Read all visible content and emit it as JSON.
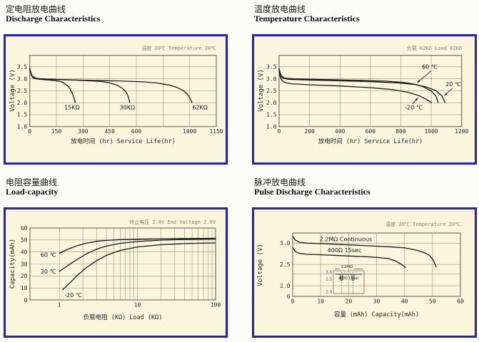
{
  "colors": {
    "panel_border": "#2323ad",
    "panel_bg": "#faf6dd",
    "grid": "#97907f",
    "plot_border": "#60594b",
    "curve": "#161616",
    "tick_text": "#262626",
    "label_text": "#111111",
    "annotation_text": "#8c7b60"
  },
  "chart_data": [
    {
      "type": "line",
      "title_cn": "定电阻放电曲线",
      "title_en": "Discharge Characteristics",
      "annotation": "温度 20℃  Temperature 20℃",
      "xlabel": "放电时间 (hr) Service Life(hr)",
      "ylabel": "Voltage (V)",
      "x_axis": {
        "type": "segmented",
        "gridvals": [
          0,
          150,
          300,
          450,
          600,
          800,
          1000,
          1150
        ],
        "labels": [
          "0",
          "150",
          "300",
          "450",
          "600",
          "",
          "1000",
          "1150"
        ]
      },
      "y_axis": {
        "min": 1.0,
        "max": 3.98,
        "grid": [
          1.5,
          2.0,
          2.5,
          3.0,
          3.5
        ],
        "ticks": [
          {
            "v": 3.5,
            "label": "3.5"
          },
          {
            "v": 3.0,
            "label": "3.0"
          },
          {
            "v": 2.5,
            "label": "2.5"
          },
          {
            "v": 2.0,
            "label": "2.0"
          },
          {
            "v": 1.5,
            "label": "1.5"
          },
          {
            "v": 1.0,
            "label": "1.0"
          }
        ]
      },
      "series": [
        {
          "name": "15KΩ",
          "points": [
            [
              0,
              3.44
            ],
            [
              4,
              3.3
            ],
            [
              9,
              3.15
            ],
            [
              18,
              3.04
            ],
            [
              35,
              3.0
            ],
            [
              70,
              2.97
            ],
            [
              110,
              2.95
            ],
            [
              150,
              2.92
            ],
            [
              175,
              2.88
            ],
            [
              195,
              2.81
            ],
            [
              213,
              2.71
            ],
            [
              228,
              2.57
            ],
            [
              240,
              2.38
            ],
            [
              250,
              2.17
            ],
            [
              256,
              2.0
            ]
          ]
        },
        {
          "name": "30KΩ",
          "points": [
            [
              0,
              3.44
            ],
            [
              5,
              3.28
            ],
            [
              12,
              3.1
            ],
            [
              28,
              3.02
            ],
            [
              70,
              2.99
            ],
            [
              150,
              2.97
            ],
            [
              250,
              2.95
            ],
            [
              340,
              2.92
            ],
            [
              410,
              2.88
            ],
            [
              455,
              2.82
            ],
            [
              492,
              2.73
            ],
            [
              522,
              2.6
            ],
            [
              544,
              2.42
            ],
            [
              557,
              2.2
            ],
            [
              563,
              2.0
            ]
          ]
        },
        {
          "name": "62KΩ",
          "points": [
            [
              0,
              3.44
            ],
            [
              6,
              3.26
            ],
            [
              15,
              3.1
            ],
            [
              40,
              3.01
            ],
            [
              120,
              2.98
            ],
            [
              300,
              2.94
            ],
            [
              500,
              2.91
            ],
            [
              650,
              2.87
            ],
            [
              760,
              2.82
            ],
            [
              845,
              2.74
            ],
            [
              905,
              2.64
            ],
            [
              952,
              2.51
            ],
            [
              987,
              2.33
            ],
            [
              1006,
              2.13
            ],
            [
              1013,
              2.0
            ]
          ]
        }
      ],
      "labels": [
        {
          "text": "15KΩ",
          "x": 238,
          "y": 1.8
        },
        {
          "text": "30KΩ",
          "x": 549,
          "y": 1.8
        },
        {
          "text": "62KΩ",
          "x": 1058,
          "y": 1.8
        }
      ],
      "arrows": []
    },
    {
      "type": "line",
      "title_cn": "温度放电曲线",
      "title_en": "Temperature Characteristics",
      "annotation": "负载 62KΩ Load 62KΩ",
      "xlabel": "放电时间 (hr) Service Life(hr)",
      "ylabel": "Voltage (V)",
      "x_axis": {
        "type": "linear",
        "min": 0,
        "max": 1200,
        "grid": [
          0,
          200,
          400,
          600,
          800,
          1000,
          1200
        ],
        "ticks": [
          {
            "v": 0,
            "label": "0"
          },
          {
            "v": 200,
            "label": "200"
          },
          {
            "v": 400,
            "label": "400"
          },
          {
            "v": 600,
            "label": "600"
          },
          {
            "v": 800,
            "label": "800"
          },
          {
            "v": 1000,
            "label": "1000"
          },
          {
            "v": 1200,
            "label": "1200"
          }
        ]
      },
      "y_axis": {
        "min": 1.0,
        "max": 3.98,
        "grid": [
          1.5,
          2.0,
          2.5,
          3.0,
          3.5
        ],
        "ticks": [
          {
            "v": 3.5,
            "label": "3.5"
          },
          {
            "v": 3.0,
            "label": "3.0"
          },
          {
            "v": 2.5,
            "label": "2.5"
          },
          {
            "v": 2.0,
            "label": "2.0"
          },
          {
            "v": 1.5,
            "label": "1.5"
          },
          {
            "v": 1.0,
            "label": "1.0"
          }
        ]
      },
      "series": [
        {
          "name": "60℃",
          "points": [
            [
              0,
              3.43
            ],
            [
              6,
              3.26
            ],
            [
              15,
              3.11
            ],
            [
              35,
              3.03
            ],
            [
              100,
              3.0
            ],
            [
              300,
              2.97
            ],
            [
              500,
              2.94
            ],
            [
              700,
              2.9
            ],
            [
              820,
              2.85
            ],
            [
              893,
              2.77
            ],
            [
              950,
              2.66
            ],
            [
              1000,
              2.49
            ],
            [
              1032,
              2.27
            ],
            [
              1046,
              2.0
            ]
          ]
        },
        {
          "name": "20℃",
          "points": [
            [
              0,
              3.41
            ],
            [
              8,
              3.19
            ],
            [
              20,
              3.04
            ],
            [
              60,
              2.98
            ],
            [
              200,
              2.95
            ],
            [
              400,
              2.92
            ],
            [
              600,
              2.88
            ],
            [
              780,
              2.83
            ],
            [
              893,
              2.76
            ],
            [
              972,
              2.65
            ],
            [
              1032,
              2.5
            ],
            [
              1070,
              2.29
            ],
            [
              1091,
              2.0
            ]
          ]
        },
        {
          "name": "-20℃",
          "points": [
            [
              0,
              3.37
            ],
            [
              6,
              3.12
            ],
            [
              16,
              2.95
            ],
            [
              38,
              2.84
            ],
            [
              85,
              2.79
            ],
            [
              200,
              2.75
            ],
            [
              400,
              2.7
            ],
            [
              600,
              2.63
            ],
            [
              740,
              2.55
            ],
            [
              845,
              2.44
            ],
            [
              918,
              2.3
            ],
            [
              968,
              2.14
            ],
            [
              1002,
              2.0
            ]
          ]
        }
      ],
      "labels": [
        {
          "text": "60 ℃",
          "x": 990,
          "y": 3.5
        },
        {
          "text": "20 ℃",
          "x": 1145,
          "y": 2.77
        },
        {
          "text": "-20 ℃",
          "x": 885,
          "y": 1.8
        }
      ],
      "arrows": [
        {
          "from": [
            1000,
            3.33
          ],
          "to": [
            908,
            2.84
          ]
        },
        {
          "from": [
            1138,
            2.6
          ],
          "to": [
            1088,
            2.3
          ]
        },
        {
          "from": [
            878,
            1.95
          ],
          "to": [
            912,
            2.2
          ]
        }
      ]
    },
    {
      "type": "line",
      "title_cn": "电阻容量曲线",
      "title_en": "Load-capacity",
      "annotation": "终止电压 2.0V End Voltage 2.0V",
      "xlabel": "负载电阻 (KΩ) Load (KΩ)",
      "ylabel": "Capacity(mAh)",
      "x_axis": {
        "type": "log",
        "min": 0.42,
        "max": 100,
        "grid": [
          1,
          2,
          3,
          4,
          5,
          6,
          7,
          8,
          9,
          10,
          20,
          30,
          40,
          50,
          60,
          70,
          80,
          90,
          100
        ],
        "ticks": [
          {
            "v": 1,
            "label": "1"
          },
          {
            "v": 10,
            "label": "10"
          },
          {
            "v": 100,
            "label": "100"
          }
        ]
      },
      "y_axis": {
        "min": 0,
        "max": 60,
        "grid": [
          10,
          20,
          30,
          40,
          50
        ],
        "ticks": [
          {
            "v": 60,
            "label": "60"
          },
          {
            "v": 50,
            "label": "50"
          },
          {
            "v": 40,
            "label": "40"
          },
          {
            "v": 30,
            "label": "30"
          },
          {
            "v": 20,
            "label": "20"
          },
          {
            "v": 10,
            "label": "10"
          },
          {
            "v": 0,
            "label": "0"
          }
        ]
      },
      "series": [
        {
          "name": "60℃",
          "points": [
            [
              1,
              39
            ],
            [
              1.3,
              42.5
            ],
            [
              1.7,
              45.3
            ],
            [
              2.2,
              47.3
            ],
            [
              3,
              48.9
            ],
            [
              4,
              49.7
            ],
            [
              6,
              50.3
            ],
            [
              10,
              50.7
            ],
            [
              20,
              51
            ],
            [
              40,
              51.2
            ],
            [
              100,
              51.4
            ]
          ]
        },
        {
          "name": "20℃",
          "points": [
            [
              1,
              23.8
            ],
            [
              1.3,
              29
            ],
            [
              1.7,
              34
            ],
            [
              2.2,
              38.3
            ],
            [
              3,
              42.4
            ],
            [
              4,
              44.9
            ],
            [
              6,
              47.2
            ],
            [
              10,
              48.7
            ],
            [
              20,
              49.9
            ],
            [
              40,
              50.5
            ],
            [
              100,
              50.9
            ]
          ]
        },
        {
          "name": "-20℃",
          "points": [
            [
              1.1,
              8.5
            ],
            [
              1.35,
              14
            ],
            [
              1.7,
              20.5
            ],
            [
              2.2,
              26.8
            ],
            [
              3,
              32.8
            ],
            [
              4,
              37.2
            ],
            [
              6,
              41.3
            ],
            [
              10,
              44.2
            ],
            [
              20,
              46.1
            ],
            [
              40,
              47
            ],
            [
              100,
              47.6
            ]
          ]
        }
      ],
      "labels": [
        {
          "text": "60 ℃",
          "x": 0.72,
          "y": 37.5
        },
        {
          "text": "20 ℃",
          "x": 0.72,
          "y": 23.5
        },
        {
          "text": "-20 ℃",
          "x": 1.5,
          "y": 4
        }
      ],
      "arrows": []
    },
    {
      "type": "line",
      "title_cn": "脉冲放电曲线",
      "title_en": "Pulse Discharge Characteristics",
      "annotation": "温度 20℃ Temperature 20℃",
      "xlabel": "容量 (mAh)  Capacity(mAh)",
      "ylabel": "Voltage (V)",
      "x_axis": {
        "type": "linear",
        "min": 0,
        "max": 60,
        "grid": [
          0,
          10,
          20,
          30,
          40,
          50,
          60
        ],
        "ticks": [
          {
            "v": 0,
            "label": "0"
          },
          {
            "v": 10,
            "label": "10"
          },
          {
            "v": 20,
            "label": "20"
          },
          {
            "v": 30,
            "label": "30"
          },
          {
            "v": 40,
            "label": "40"
          },
          {
            "v": 50,
            "label": "50"
          },
          {
            "v": 60,
            "label": "60"
          }
        ]
      },
      "y_axis": {
        "min": 1.75,
        "max": 3.24,
        "grid": [
          2.0,
          2.28,
          2.5,
          3.0
        ],
        "ticks": [
          {
            "v": 3.0,
            "label": "3.0"
          },
          {
            "v": 2.5,
            "label": "2.5"
          },
          {
            "v": 2.0,
            "label": "2.0"
          },
          {
            "v": 1.75,
            "label": "0"
          }
        ]
      },
      "series": [
        {
          "name": "2.2MΩ Continuous",
          "points": [
            [
              0,
              3.16
            ],
            [
              1,
              3.07
            ],
            [
              2.5,
              3.02
            ],
            [
              5,
              3.0
            ],
            [
              10,
              2.99
            ],
            [
              20,
              2.96
            ],
            [
              30,
              2.93
            ],
            [
              36,
              2.91
            ],
            [
              40,
              2.89
            ],
            [
              44,
              2.84
            ],
            [
              47,
              2.78
            ],
            [
              49,
              2.71
            ],
            [
              50.3,
              2.6
            ],
            [
              51.3,
              2.45
            ]
          ]
        },
        {
          "name": "400Ω 15sec",
          "points": [
            [
              0,
              2.9
            ],
            [
              1,
              2.8
            ],
            [
              2.5,
              2.76
            ],
            [
              5,
              2.74
            ],
            [
              10,
              2.73
            ],
            [
              20,
              2.7
            ],
            [
              27,
              2.68
            ],
            [
              31,
              2.66
            ],
            [
              34,
              2.64
            ],
            [
              36.5,
              2.59
            ],
            [
              38.5,
              2.52
            ],
            [
              40.4,
              2.43
            ]
          ]
        }
      ],
      "labels": [
        {
          "text": "2.2MΩ Continuous",
          "x": 19,
          "y": 3.09
        },
        {
          "text": "400Ω 15sec",
          "x": 18.5,
          "y": 2.83
        }
      ],
      "arrows": [],
      "inset": {
        "load_label": "2.2MΩ",
        "pulse_label": "400Ω 15Sec",
        "yticks": [
          "3.0",
          "2.5",
          "2.0"
        ]
      }
    }
  ]
}
